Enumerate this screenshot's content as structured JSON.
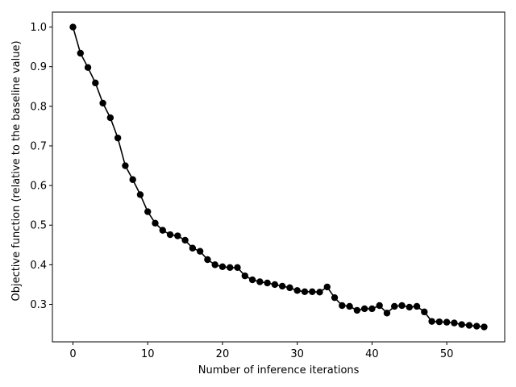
{
  "chart_data": {
    "type": "line",
    "title": "",
    "xlabel": "Number of inference iterations",
    "ylabel": "Objective function (relative to the baseline value)",
    "xlim": [
      -2.75,
      57.75
    ],
    "ylim": [
      0.2054,
      1.0378
    ],
    "xticks": [
      0,
      10,
      20,
      30,
      40,
      50
    ],
    "xtick_labels": [
      "0",
      "10",
      "20",
      "30",
      "40",
      "50"
    ],
    "yticks": [
      0.3,
      0.4,
      0.5,
      0.6,
      0.7,
      0.8,
      0.9,
      1.0
    ],
    "ytick_labels": [
      "0.3",
      "0.4",
      "0.5",
      "0.6",
      "0.7",
      "0.8",
      "0.9",
      "1.0"
    ],
    "grid": false,
    "colors": {
      "line": "#000000",
      "marker": "#000000",
      "frame": "#000000"
    },
    "marker": "circle",
    "series": [
      {
        "x": [
          0,
          1,
          2,
          3,
          4,
          5,
          6,
          7,
          8,
          9,
          10,
          11,
          12,
          13,
          14,
          15,
          16,
          17,
          18,
          19,
          20,
          21,
          22,
          23,
          24,
          25,
          26,
          27,
          28,
          29,
          30,
          31,
          32,
          33,
          34,
          35,
          36,
          37,
          38,
          39,
          40,
          41,
          42,
          43,
          44,
          45,
          46,
          47,
          48,
          49,
          50,
          51,
          52,
          53,
          54,
          55
        ],
        "values": [
          1.0,
          0.934,
          0.898,
          0.859,
          0.808,
          0.771,
          0.72,
          0.65,
          0.615,
          0.577,
          0.534,
          0.505,
          0.487,
          0.476,
          0.473,
          0.462,
          0.442,
          0.434,
          0.413,
          0.4,
          0.395,
          0.393,
          0.393,
          0.372,
          0.362,
          0.357,
          0.354,
          0.35,
          0.346,
          0.342,
          0.335,
          0.332,
          0.332,
          0.331,
          0.344,
          0.317,
          0.297,
          0.295,
          0.285,
          0.289,
          0.289,
          0.297,
          0.278,
          0.295,
          0.297,
          0.293,
          0.295,
          0.281,
          0.257,
          0.256,
          0.255,
          0.253,
          0.249,
          0.247,
          0.245,
          0.243
        ]
      }
    ]
  }
}
